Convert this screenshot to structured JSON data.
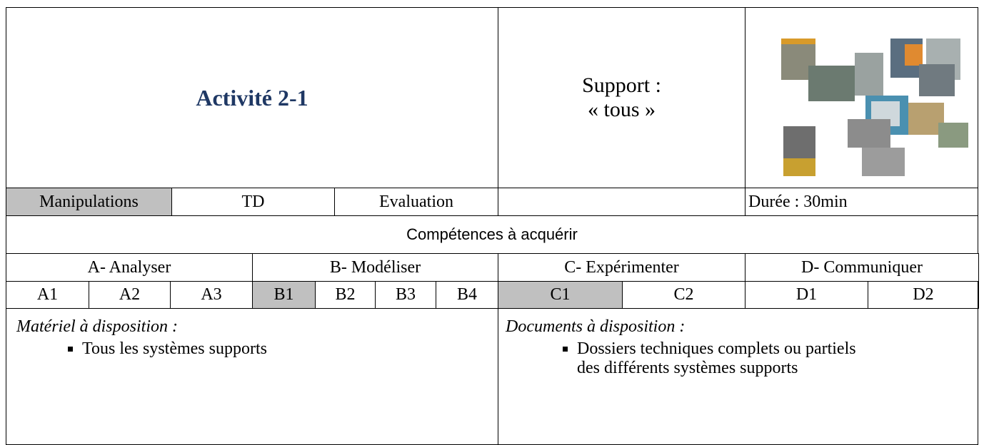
{
  "header": {
    "title": "Activité 2-1",
    "support_label": "Support :",
    "support_value": "« tous »"
  },
  "modes": [
    "Manipulations",
    "TD",
    "Evaluation"
  ],
  "duration": "Durée : 30min",
  "competences": {
    "heading": "Compétences à acquérir",
    "groups": [
      "A- Analyser",
      "B- Modéliser",
      "C- Expérimenter",
      "D- Communiquer"
    ],
    "codes": [
      "A1",
      "A2",
      "A3",
      "B1",
      "B2",
      "B3",
      "B4",
      "C1",
      "C2",
      "D1",
      "D2"
    ]
  },
  "materiel": {
    "heading": "Matériel à disposition :",
    "items": [
      "Tous les systèmes supports"
    ]
  },
  "documents": {
    "heading": "Documents à disposition :",
    "items": [
      "Dossiers techniques complets ou partiels des différents systèmes supports"
    ]
  }
}
